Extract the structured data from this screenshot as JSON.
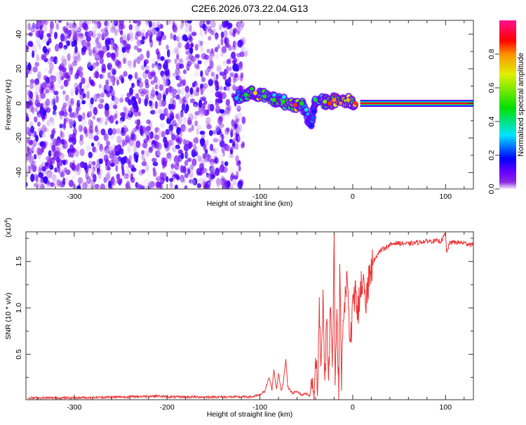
{
  "title": "C2E6.2026.073.22.04.G13",
  "chart_data": [
    {
      "type": "heatmap",
      "title": "C2E6.2026.073.22.04.G13",
      "xlabel": "Height of straight line (km)",
      "ylabel": "Frequency (Hz)",
      "xlim": [
        -352,
        130
      ],
      "ylim": [
        -49.5,
        48
      ],
      "xticks": [
        -300,
        -200,
        -100,
        0,
        100
      ],
      "xtick_labels": [
        "-300",
        "-200",
        "-100",
        "0",
        "100"
      ],
      "yticks": [
        -40,
        -20,
        0,
        20,
        40
      ],
      "ytick_labels": [
        "-40",
        "-20",
        "0",
        "20",
        "40"
      ],
      "noise_region_x": [
        -352,
        -120
      ],
      "noise_amplitude_range": [
        0.0,
        0.15
      ],
      "ridge": [
        {
          "x": -125,
          "freq": 3,
          "amp": 0.3
        },
        {
          "x": -115,
          "freq": 5,
          "amp": 0.45
        },
        {
          "x": -105,
          "freq": 6,
          "amp": 0.7
        },
        {
          "x": -95,
          "freq": 4,
          "amp": 0.5
        },
        {
          "x": -85,
          "freq": 2,
          "amp": 0.5
        },
        {
          "x": -75,
          "freq": 1,
          "amp": 0.5
        },
        {
          "x": -62,
          "freq": -1,
          "amp": 0.85
        },
        {
          "x": -55,
          "freq": 0,
          "amp": 0.5
        },
        {
          "x": -45,
          "freq": -13,
          "amp": 0.2
        },
        {
          "x": -40,
          "freq": 2,
          "amp": 0.45
        },
        {
          "x": -30,
          "freq": 1,
          "amp": 0.6
        },
        {
          "x": -25,
          "freq": 0,
          "amp": 0.85
        },
        {
          "x": -20,
          "freq": 2,
          "amp": 0.8
        },
        {
          "x": -5,
          "freq": 2,
          "amp": 0.75
        },
        {
          "x": 3,
          "freq": 0,
          "amp": 0.85
        }
      ],
      "steady_band": {
        "x_start": 8,
        "x_end": 130,
        "freq": 0,
        "half_width_hz": 2,
        "amp": 0.92
      },
      "colorbar": {
        "label": "Normalized spectral amplitude",
        "ticks": [
          0.0,
          0.2,
          0.4,
          0.6,
          0.8
        ],
        "tick_labels": [
          "0.0",
          "0.2",
          "0.4",
          "0.6",
          "0.8"
        ],
        "range": [
          0,
          1
        ],
        "stops": [
          "#f4ecfb",
          "#8a2be2",
          "#6a00ff",
          "#0000ff",
          "#00e5ff",
          "#00e000",
          "#e0f000",
          "#ff9000",
          "#ff0000",
          "#ff1090"
        ]
      }
    },
    {
      "type": "line",
      "xlabel": "Height of straight line (km)",
      "ylabel": "SNR (10 * v/v)",
      "y_multiplier": "(x10",
      "y_multiplier_exp": "4",
      "y_multiplier_close": ")",
      "xlim": [
        -352,
        130
      ],
      "ylim": [
        0.01,
        1.82
      ],
      "xticks": [
        -300,
        -200,
        -100,
        0,
        100
      ],
      "xtick_labels": [
        "-300",
        "-200",
        "-100",
        "0",
        "100"
      ],
      "yticks": [
        0.5,
        1.0,
        1.5
      ],
      "ytick_labels": [
        "0.5",
        "1.0",
        "1.5"
      ],
      "color": "#ee3333",
      "series": [
        {
          "name": "SNR",
          "x": [
            -350,
            -300,
            -250,
            -210,
            -200,
            -150,
            -110,
            -100,
            -95,
            -90,
            -87,
            -85,
            -82,
            -80,
            -77,
            -75,
            -72,
            -70,
            -65,
            -60,
            -55,
            -50,
            -46,
            -44,
            -41,
            -40,
            -38,
            -36,
            -34,
            -32,
            -30,
            -28,
            -26,
            -24,
            -22,
            -20,
            -19,
            -17,
            -15,
            -14,
            -12,
            -10,
            -7,
            -5,
            -3,
            0,
            3,
            6,
            10,
            14,
            18,
            22,
            28,
            35,
            45,
            60,
            80,
            95,
            100,
            101,
            105,
            120,
            130
          ],
          "values": [
            0.03,
            0.03,
            0.04,
            0.05,
            0.04,
            0.04,
            0.04,
            0.06,
            0.1,
            0.25,
            0.12,
            0.33,
            0.12,
            0.3,
            0.1,
            0.18,
            0.45,
            0.15,
            0.08,
            0.1,
            0.06,
            0.08,
            0.05,
            0.3,
            0.1,
            0.6,
            0.1,
            1.0,
            0.3,
            1.2,
            0.2,
            0.9,
            0.15,
            1.1,
            0.3,
            1.78,
            0.2,
            1.0,
            0.05,
            1.4,
            0.2,
            0.9,
            1.2,
            1.28,
            0.55,
            1.0,
            1.15,
            1.0,
            1.3,
            1.05,
            1.35,
            1.5,
            1.6,
            1.65,
            1.7,
            1.69,
            1.72,
            1.72,
            1.8,
            1.6,
            1.71,
            1.7,
            1.68
          ]
        }
      ]
    }
  ]
}
